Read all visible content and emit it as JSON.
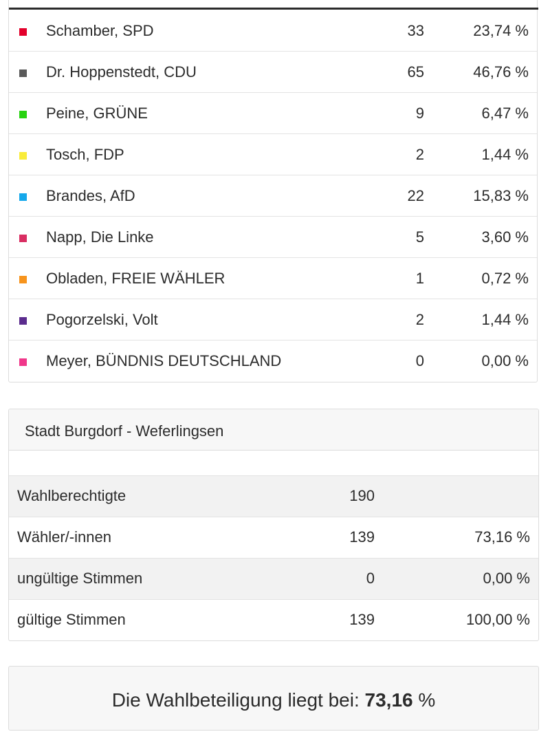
{
  "candidates": [
    {
      "name": "Schamber, SPD",
      "votes": "33",
      "percent": "23,74 %",
      "color": "#e3002b"
    },
    {
      "name": "Dr. Hoppenstedt, CDU",
      "votes": "65",
      "percent": "46,76 %",
      "color": "#5a5a5a"
    },
    {
      "name": "Peine, GRÜNE",
      "votes": "9",
      "percent": "6,47 %",
      "color": "#27d310"
    },
    {
      "name": "Tosch, FDP",
      "votes": "2",
      "percent": "1,44 %",
      "color": "#f9ec3a"
    },
    {
      "name": "Brandes, AfD",
      "votes": "22",
      "percent": "15,83 %",
      "color": "#15a8eb"
    },
    {
      "name": "Napp, Die Linke",
      "votes": "5",
      "percent": "3,60 %",
      "color": "#d92e62"
    },
    {
      "name": "Obladen, FREIE WÄHLER",
      "votes": "1",
      "percent": "0,72 %",
      "color": "#f7941d"
    },
    {
      "name": "Pogorzelski, Volt",
      "votes": "2",
      "percent": "1,44 %",
      "color": "#5b2c8e"
    },
    {
      "name": "Meyer, BÜNDNIS DEUTSCHLAND",
      "votes": "0",
      "percent": "0,00 %",
      "color": "#f0378a"
    }
  ],
  "district": {
    "title": "Stadt Burgdorf - Weferlingsen",
    "rows": [
      {
        "label": "Wahlberechtigte",
        "count": "190",
        "percent": ""
      },
      {
        "label": "Wähler/-innen",
        "count": "139",
        "percent": "73,16 %"
      },
      {
        "label": "ungültige Stimmen",
        "count": "0",
        "percent": "0,00 %"
      },
      {
        "label": "gültige Stimmen",
        "count": "139",
        "percent": "100,00 %"
      }
    ]
  },
  "turnout": {
    "prefix": "Die Wahlbeteiligung liegt bei:",
    "value": "73,16",
    "unit": "%"
  }
}
